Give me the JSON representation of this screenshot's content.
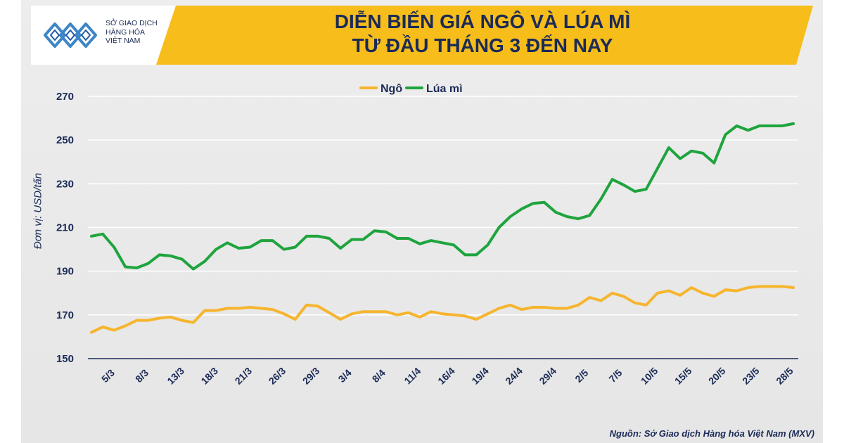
{
  "header": {
    "logo_lines": [
      "SỞ GIAO DỊCH",
      "HÀNG HÓA",
      "VIỆT NAM"
    ],
    "title_line1": "DIỄN BIẾN GIÁ NGÔ VÀ LÚA MÌ",
    "title_line2": "TỪ ĐẦU THÁNG 3 ĐẾN NAY"
  },
  "footer": {
    "source": "Nguồn: Sở Giao dịch Hàng hóa Việt Nam (MXV)"
  },
  "colors": {
    "corn": "#f6b52e",
    "wheat": "#1fa43e",
    "title": "#1b2a56",
    "banner": "#f6bd1b"
  },
  "chart_data": {
    "type": "line",
    "ylabel": "Đơn vị: USD/tấn",
    "ylim": [
      150,
      270
    ],
    "yticks": [
      150,
      170,
      190,
      210,
      230,
      250,
      270
    ],
    "x_tick_labels": [
      "5/3",
      "8/3",
      "13/3",
      "18/3",
      "21/3",
      "26/3",
      "29/3",
      "3/4",
      "8/4",
      "11/4",
      "16/4",
      "19/4",
      "24/4",
      "29/4",
      "2/5",
      "7/5",
      "10/5",
      "15/5",
      "20/5",
      "23/5",
      "28/5"
    ],
    "grid": true,
    "legend_position": "top-center",
    "series": [
      {
        "name": "Ngô",
        "color": "#f6b52e",
        "values": [
          162,
          164.5,
          163,
          165,
          167.5,
          167.5,
          168.5,
          169,
          167.5,
          166.5,
          172,
          172,
          173,
          173,
          173.5,
          173,
          172.5,
          170.5,
          168,
          174.5,
          174,
          171,
          168,
          170.5,
          171.5,
          171.5,
          171.5,
          170,
          171,
          169,
          171.5,
          170.5,
          170,
          169.5,
          168,
          170.5,
          173,
          174.5,
          172.5,
          173.5,
          173.5,
          173,
          173,
          174.5,
          178,
          176.5,
          180,
          178.5,
          175.5,
          174.5,
          180,
          181,
          179,
          182.5,
          180,
          178.5,
          181.5,
          181,
          182.5,
          183,
          183,
          183,
          182.5
        ]
      },
      {
        "name": "Lúa mì",
        "color": "#1fa43e",
        "values": [
          206,
          207,
          201,
          192,
          191.5,
          193.5,
          197.5,
          197,
          195.5,
          191,
          194.5,
          200,
          203,
          200.5,
          201,
          204,
          204,
          200,
          201,
          206,
          206,
          205,
          200.5,
          204.5,
          204.5,
          208.5,
          208,
          205,
          205,
          202.5,
          204,
          203,
          202,
          197.5,
          197.5,
          202,
          210,
          215,
          218.5,
          221,
          221.5,
          217,
          215,
          214,
          215.5,
          223,
          232,
          229.5,
          226.5,
          227.5,
          237,
          246.5,
          241.5,
          245,
          244,
          239.5,
          252.5,
          256.5,
          254.5,
          256.5,
          256.5,
          256.5,
          257.5
        ]
      }
    ]
  }
}
